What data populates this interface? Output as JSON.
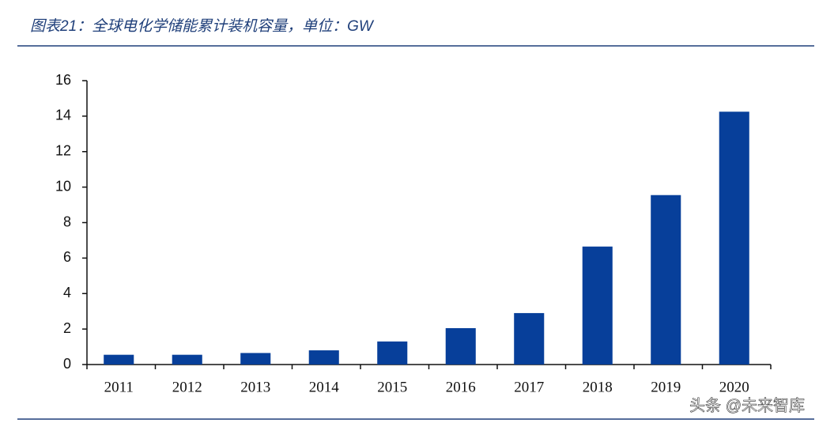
{
  "chart_data": {
    "type": "bar",
    "title": "图表21：全球电化学储能累计装机容量，单位：GW",
    "categories": [
      "2011",
      "2012",
      "2013",
      "2014",
      "2015",
      "2016",
      "2017",
      "2018",
      "2019",
      "2020"
    ],
    "values": [
      0.55,
      0.55,
      0.65,
      0.8,
      1.3,
      2.05,
      2.9,
      6.65,
      9.55,
      14.25
    ],
    "color": "#073f9a",
    "ylim": [
      0,
      16
    ],
    "yticks": [
      0,
      2,
      4,
      6,
      8,
      10,
      12,
      14,
      16
    ],
    "grid": false,
    "watermark": "头条 @未来智库"
  }
}
